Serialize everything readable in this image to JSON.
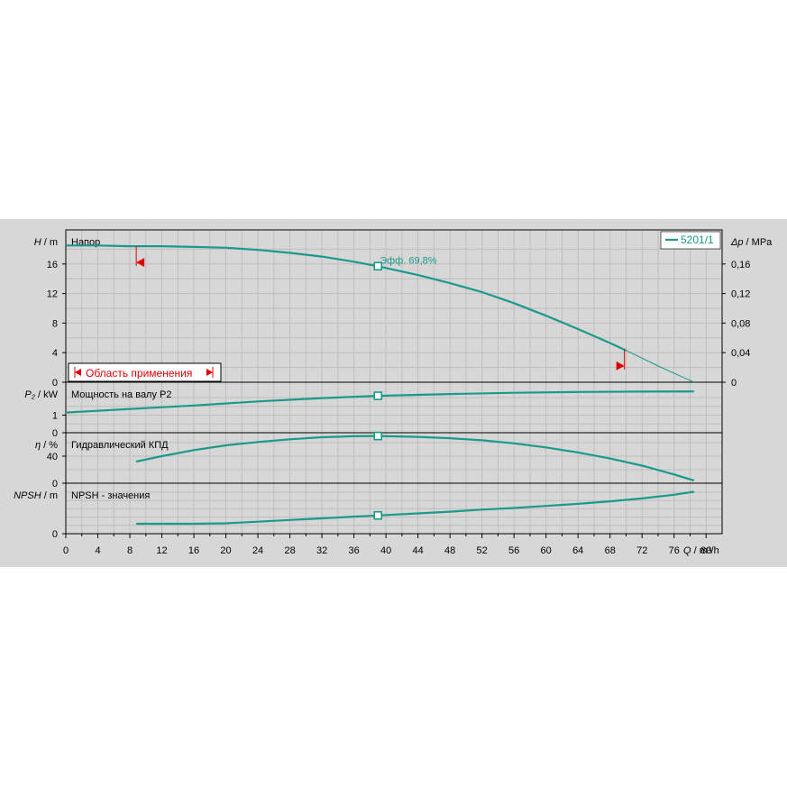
{
  "chart_data": {
    "type": "line",
    "x_axis": {
      "label_symbol": "Q",
      "label_unit": "m³/h",
      "range": [
        0,
        82
      ],
      "ticks": [
        0,
        4,
        8,
        12,
        16,
        20,
        24,
        28,
        32,
        36,
        40,
        44,
        48,
        52,
        56,
        60,
        64,
        68,
        72,
        76,
        80
      ]
    },
    "legend": {
      "label": "5201/1",
      "placement": "top-right"
    },
    "grid": true,
    "application_range": {
      "label": "Область применения",
      "q_min": 8.8,
      "q_max": 69.8
    },
    "duty_point": {
      "q": 39,
      "efficiency_label": "Эфф.",
      "efficiency_value": "69,8%"
    },
    "panels": [
      {
        "id": "head",
        "title": "Напор",
        "y_symbol": "H",
        "y_unit": "m",
        "y_range": [
          0,
          19
        ],
        "y_ticks": [
          0,
          4,
          8,
          12,
          16
        ],
        "right_axis": {
          "symbol": "Δp",
          "unit": "MPa",
          "ticks": [
            "0",
            "0,04",
            "0,08",
            "0,12",
            "0,16"
          ],
          "tick_positions": [
            0,
            4,
            8,
            12,
            16
          ]
        },
        "series": [
          {
            "x": [
              0,
              4,
              8,
              12,
              16,
              20,
              24,
              28,
              32,
              36,
              39,
              44,
              48,
              52,
              56,
              60,
              64,
              68,
              70
            ],
            "y": [
              18.5,
              18.5,
              18.4,
              18.4,
              18.3,
              18.2,
              17.9,
              17.5,
              17.0,
              16.3,
              15.7,
              14.5,
              13.4,
              12.2,
              10.7,
              9.0,
              7.2,
              5.3,
              4.3
            ]
          },
          {
            "x": [
              70,
              74,
              78.5
            ],
            "y": [
              4.3,
              2.2,
              0
            ],
            "style": "thin"
          }
        ]
      },
      {
        "id": "power",
        "title": "Мощность на валу P2",
        "y_symbol": "P₂",
        "y_unit": "kW",
        "y_range": [
          0,
          2.5
        ],
        "y_ticks": [
          0,
          1
        ],
        "series": [
          {
            "x": [
              0,
              8,
              16,
              24,
              32,
              39,
              48,
              56,
              64,
              72,
              78.5
            ],
            "y": [
              1.15,
              1.35,
              1.55,
              1.78,
              1.97,
              2.1,
              2.2,
              2.27,
              2.32,
              2.34,
              2.35
            ]
          }
        ]
      },
      {
        "id": "efficiency",
        "title": "Гидравлический КПД",
        "y_symbol": "η",
        "y_unit": "%",
        "y_range": [
          0,
          80
        ],
        "y_ticks": [
          0,
          40
        ],
        "series": [
          {
            "x": [
              8.8,
              12,
              16,
              20,
              24,
              28,
              32,
              36,
              39,
              44,
              48,
              52,
              56,
              60,
              64,
              68,
              72,
              76,
              78.5
            ],
            "y": [
              32,
              40,
              49,
              56,
              61,
              65,
              68,
              69.5,
              69.8,
              68.5,
              66.5,
              63.5,
              59,
              53,
              45.5,
              36.5,
              26,
              13,
              4
            ]
          }
        ]
      },
      {
        "id": "npsh",
        "title": "NPSH - значения",
        "y_symbol": "NPSH",
        "y_unit": "m",
        "y_range": [
          0,
          6
        ],
        "y_ticks": [
          0
        ],
        "series": [
          {
            "x": [
              8.8,
              16,
              20,
              24,
              28,
              32,
              36,
              39,
              44,
              48,
              52,
              56,
              60,
              64,
              68,
              72,
              76,
              78.5
            ],
            "y": [
              1.2,
              1.2,
              1.25,
              1.45,
              1.65,
              1.85,
              2.05,
              2.2,
              2.45,
              2.65,
              2.9,
              3.1,
              3.35,
              3.6,
              3.9,
              4.25,
              4.7,
              5.05
            ]
          }
        ]
      }
    ]
  }
}
